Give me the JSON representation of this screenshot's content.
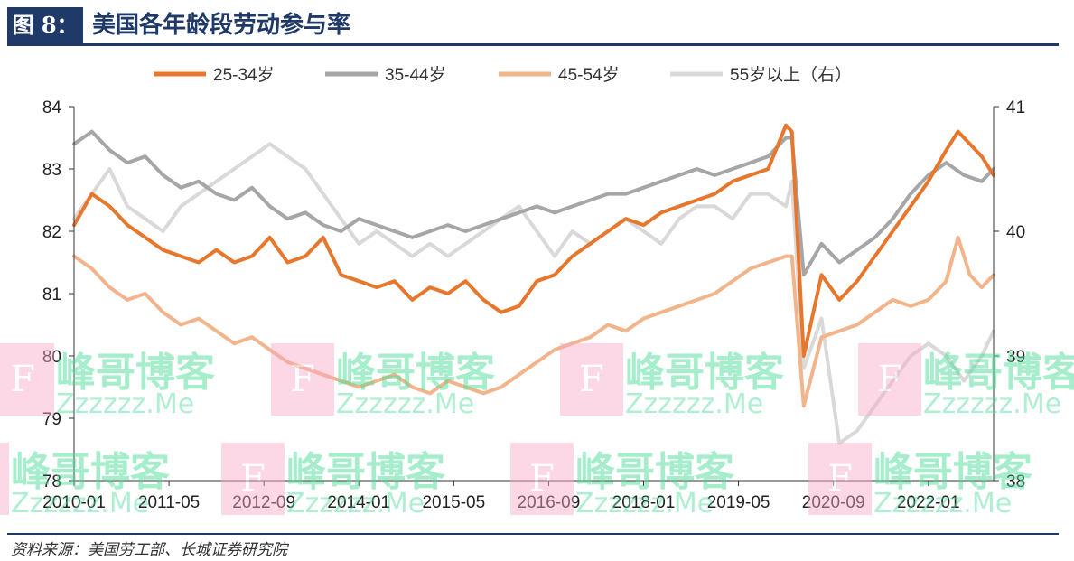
{
  "header": {
    "figure_label": "图 8：",
    "title": "美国各年龄段劳动参与率"
  },
  "source": "资料来源：美国劳工部、长城证券研究院",
  "watermark": {
    "cn": "峰哥博客",
    "en": "Zzzzzz.Me",
    "badge": "F"
  },
  "colors": {
    "s25_34": "#e8772e",
    "s35_44": "#a6a6a6",
    "s45_54": "#f2b48a",
    "s55": "#d9d9d9",
    "axis": "#333333",
    "title_blue": "#1f3a68"
  },
  "chart_data": {
    "type": "line",
    "x_tick_labels": [
      "2010-01",
      "2011-05",
      "2012-09",
      "2014-01",
      "2015-05",
      "2016-09",
      "2018-01",
      "2019-05",
      "2020-09",
      "2022-01"
    ],
    "x_range": [
      "2010-01",
      "2022-12"
    ],
    "y_left": {
      "min": 78,
      "max": 84,
      "ticks": [
        "84",
        "83",
        "82",
        "81",
        "80",
        "79",
        "78"
      ]
    },
    "y_right": {
      "min": 38,
      "max": 41,
      "ticks": [
        "41",
        "40",
        "39",
        "38"
      ]
    },
    "legend_position": "top",
    "series": [
      {
        "name": "25-34岁",
        "axis": "left",
        "color": "#e8772e",
        "points": [
          [
            "2010-01",
            82.1
          ],
          [
            "2010-04",
            82.6
          ],
          [
            "2010-07",
            82.4
          ],
          [
            "2010-10",
            82.1
          ],
          [
            "2011-01",
            81.9
          ],
          [
            "2011-04",
            81.7
          ],
          [
            "2011-07",
            81.6
          ],
          [
            "2011-10",
            81.5
          ],
          [
            "2012-01",
            81.7
          ],
          [
            "2012-04",
            81.5
          ],
          [
            "2012-07",
            81.6
          ],
          [
            "2012-10",
            81.9
          ],
          [
            "2013-01",
            81.5
          ],
          [
            "2013-04",
            81.6
          ],
          [
            "2013-07",
            81.9
          ],
          [
            "2013-10",
            81.3
          ],
          [
            "2014-01",
            81.2
          ],
          [
            "2014-04",
            81.1
          ],
          [
            "2014-07",
            81.2
          ],
          [
            "2014-10",
            80.9
          ],
          [
            "2015-01",
            81.1
          ],
          [
            "2015-04",
            81.0
          ],
          [
            "2015-07",
            81.2
          ],
          [
            "2015-10",
            80.9
          ],
          [
            "2016-01",
            80.7
          ],
          [
            "2016-04",
            80.8
          ],
          [
            "2016-07",
            81.2
          ],
          [
            "2016-10",
            81.3
          ],
          [
            "2017-01",
            81.6
          ],
          [
            "2017-04",
            81.8
          ],
          [
            "2017-07",
            82.0
          ],
          [
            "2017-10",
            82.2
          ],
          [
            "2018-01",
            82.1
          ],
          [
            "2018-04",
            82.3
          ],
          [
            "2018-07",
            82.4
          ],
          [
            "2018-10",
            82.5
          ],
          [
            "2019-01",
            82.6
          ],
          [
            "2019-04",
            82.8
          ],
          [
            "2019-07",
            82.9
          ],
          [
            "2019-10",
            83.0
          ],
          [
            "2020-01",
            83.7
          ],
          [
            "2020-02",
            83.6
          ],
          [
            "2020-04",
            80.0
          ],
          [
            "2020-07",
            81.3
          ],
          [
            "2020-10",
            80.9
          ],
          [
            "2021-01",
            81.2
          ],
          [
            "2021-04",
            81.6
          ],
          [
            "2021-07",
            82.0
          ],
          [
            "2021-10",
            82.4
          ],
          [
            "2022-01",
            82.8
          ],
          [
            "2022-04",
            83.3
          ],
          [
            "2022-06",
            83.6
          ],
          [
            "2022-08",
            83.4
          ],
          [
            "2022-10",
            83.2
          ],
          [
            "2022-12",
            82.9
          ]
        ]
      },
      {
        "name": "35-44岁",
        "axis": "left",
        "color": "#a6a6a6",
        "points": [
          [
            "2010-01",
            83.4
          ],
          [
            "2010-04",
            83.6
          ],
          [
            "2010-07",
            83.3
          ],
          [
            "2010-10",
            83.1
          ],
          [
            "2011-01",
            83.2
          ],
          [
            "2011-04",
            82.9
          ],
          [
            "2011-07",
            82.7
          ],
          [
            "2011-10",
            82.8
          ],
          [
            "2012-01",
            82.6
          ],
          [
            "2012-04",
            82.5
          ],
          [
            "2012-07",
            82.7
          ],
          [
            "2012-10",
            82.4
          ],
          [
            "2013-01",
            82.2
          ],
          [
            "2013-04",
            82.3
          ],
          [
            "2013-07",
            82.1
          ],
          [
            "2013-10",
            82.0
          ],
          [
            "2014-01",
            82.2
          ],
          [
            "2014-04",
            82.1
          ],
          [
            "2014-07",
            82.0
          ],
          [
            "2014-10",
            81.9
          ],
          [
            "2015-01",
            82.0
          ],
          [
            "2015-04",
            82.1
          ],
          [
            "2015-07",
            82.0
          ],
          [
            "2015-10",
            82.1
          ],
          [
            "2016-01",
            82.2
          ],
          [
            "2016-04",
            82.3
          ],
          [
            "2016-07",
            82.4
          ],
          [
            "2016-10",
            82.3
          ],
          [
            "2017-01",
            82.4
          ],
          [
            "2017-04",
            82.5
          ],
          [
            "2017-07",
            82.6
          ],
          [
            "2017-10",
            82.6
          ],
          [
            "2018-01",
            82.7
          ],
          [
            "2018-04",
            82.8
          ],
          [
            "2018-07",
            82.9
          ],
          [
            "2018-10",
            83.0
          ],
          [
            "2019-01",
            82.9
          ],
          [
            "2019-04",
            83.0
          ],
          [
            "2019-07",
            83.1
          ],
          [
            "2019-10",
            83.2
          ],
          [
            "2020-01",
            83.5
          ],
          [
            "2020-02",
            83.5
          ],
          [
            "2020-04",
            81.3
          ],
          [
            "2020-07",
            81.8
          ],
          [
            "2020-10",
            81.5
          ],
          [
            "2021-01",
            81.7
          ],
          [
            "2021-04",
            81.9
          ],
          [
            "2021-07",
            82.2
          ],
          [
            "2021-10",
            82.6
          ],
          [
            "2022-01",
            82.9
          ],
          [
            "2022-04",
            83.1
          ],
          [
            "2022-07",
            82.9
          ],
          [
            "2022-10",
            82.8
          ],
          [
            "2022-12",
            83.0
          ]
        ]
      },
      {
        "name": "45-54岁",
        "axis": "left",
        "color": "#f2b48a",
        "points": [
          [
            "2010-01",
            81.6
          ],
          [
            "2010-04",
            81.4
          ],
          [
            "2010-07",
            81.1
          ],
          [
            "2010-10",
            80.9
          ],
          [
            "2011-01",
            81.0
          ],
          [
            "2011-04",
            80.7
          ],
          [
            "2011-07",
            80.5
          ],
          [
            "2011-10",
            80.6
          ],
          [
            "2012-01",
            80.4
          ],
          [
            "2012-04",
            80.2
          ],
          [
            "2012-07",
            80.3
          ],
          [
            "2012-10",
            80.1
          ],
          [
            "2013-01",
            79.9
          ],
          [
            "2013-04",
            79.8
          ],
          [
            "2013-07",
            79.7
          ],
          [
            "2013-10",
            79.6
          ],
          [
            "2014-01",
            79.5
          ],
          [
            "2014-04",
            79.6
          ],
          [
            "2014-07",
            79.7
          ],
          [
            "2014-10",
            79.5
          ],
          [
            "2015-01",
            79.4
          ],
          [
            "2015-04",
            79.6
          ],
          [
            "2015-07",
            79.5
          ],
          [
            "2015-10",
            79.4
          ],
          [
            "2016-01",
            79.5
          ],
          [
            "2016-04",
            79.7
          ],
          [
            "2016-07",
            79.9
          ],
          [
            "2016-10",
            80.1
          ],
          [
            "2017-01",
            80.2
          ],
          [
            "2017-04",
            80.3
          ],
          [
            "2017-07",
            80.5
          ],
          [
            "2017-10",
            80.4
          ],
          [
            "2018-01",
            80.6
          ],
          [
            "2018-04",
            80.7
          ],
          [
            "2018-07",
            80.8
          ],
          [
            "2018-10",
            80.9
          ],
          [
            "2019-01",
            81.0
          ],
          [
            "2019-04",
            81.2
          ],
          [
            "2019-07",
            81.4
          ],
          [
            "2019-10",
            81.5
          ],
          [
            "2020-01",
            81.6
          ],
          [
            "2020-02",
            81.6
          ],
          [
            "2020-04",
            79.2
          ],
          [
            "2020-07",
            80.3
          ],
          [
            "2020-10",
            80.4
          ],
          [
            "2021-01",
            80.5
          ],
          [
            "2021-04",
            80.7
          ],
          [
            "2021-07",
            80.9
          ],
          [
            "2021-10",
            80.8
          ],
          [
            "2022-01",
            80.9
          ],
          [
            "2022-04",
            81.2
          ],
          [
            "2022-06",
            81.9
          ],
          [
            "2022-08",
            81.3
          ],
          [
            "2022-10",
            81.1
          ],
          [
            "2022-12",
            81.3
          ]
        ]
      },
      {
        "name": "55岁以上（右）",
        "axis": "right",
        "color": "#d9d9d9",
        "points": [
          [
            "2010-01",
            40.1
          ],
          [
            "2010-04",
            40.3
          ],
          [
            "2010-07",
            40.5
          ],
          [
            "2010-10",
            40.2
          ],
          [
            "2011-01",
            40.1
          ],
          [
            "2011-04",
            40.0
          ],
          [
            "2011-07",
            40.2
          ],
          [
            "2011-10",
            40.3
          ],
          [
            "2012-01",
            40.4
          ],
          [
            "2012-04",
            40.5
          ],
          [
            "2012-07",
            40.6
          ],
          [
            "2012-10",
            40.7
          ],
          [
            "2013-01",
            40.6
          ],
          [
            "2013-04",
            40.5
          ],
          [
            "2013-07",
            40.3
          ],
          [
            "2013-10",
            40.1
          ],
          [
            "2014-01",
            39.9
          ],
          [
            "2014-04",
            40.0
          ],
          [
            "2014-07",
            39.9
          ],
          [
            "2014-10",
            39.8
          ],
          [
            "2015-01",
            39.9
          ],
          [
            "2015-04",
            39.8
          ],
          [
            "2015-07",
            39.9
          ],
          [
            "2015-10",
            40.0
          ],
          [
            "2016-01",
            40.1
          ],
          [
            "2016-04",
            40.2
          ],
          [
            "2016-07",
            40.0
          ],
          [
            "2016-10",
            39.8
          ],
          [
            "2017-01",
            40.0
          ],
          [
            "2017-04",
            39.9
          ],
          [
            "2017-07",
            40.0
          ],
          [
            "2017-10",
            40.1
          ],
          [
            "2018-01",
            40.0
          ],
          [
            "2018-04",
            39.9
          ],
          [
            "2018-07",
            40.1
          ],
          [
            "2018-10",
            40.2
          ],
          [
            "2019-01",
            40.2
          ],
          [
            "2019-04",
            40.1
          ],
          [
            "2019-07",
            40.3
          ],
          [
            "2019-10",
            40.3
          ],
          [
            "2020-01",
            40.2
          ],
          [
            "2020-02",
            40.4
          ],
          [
            "2020-04",
            38.9
          ],
          [
            "2020-07",
            39.3
          ],
          [
            "2020-10",
            38.3
          ],
          [
            "2021-01",
            38.4
          ],
          [
            "2021-04",
            38.6
          ],
          [
            "2021-07",
            38.8
          ],
          [
            "2021-10",
            39.0
          ],
          [
            "2022-01",
            39.1
          ],
          [
            "2022-04",
            39.0
          ],
          [
            "2022-07",
            38.8
          ],
          [
            "2022-10",
            39.0
          ],
          [
            "2022-12",
            39.2
          ]
        ]
      }
    ]
  }
}
